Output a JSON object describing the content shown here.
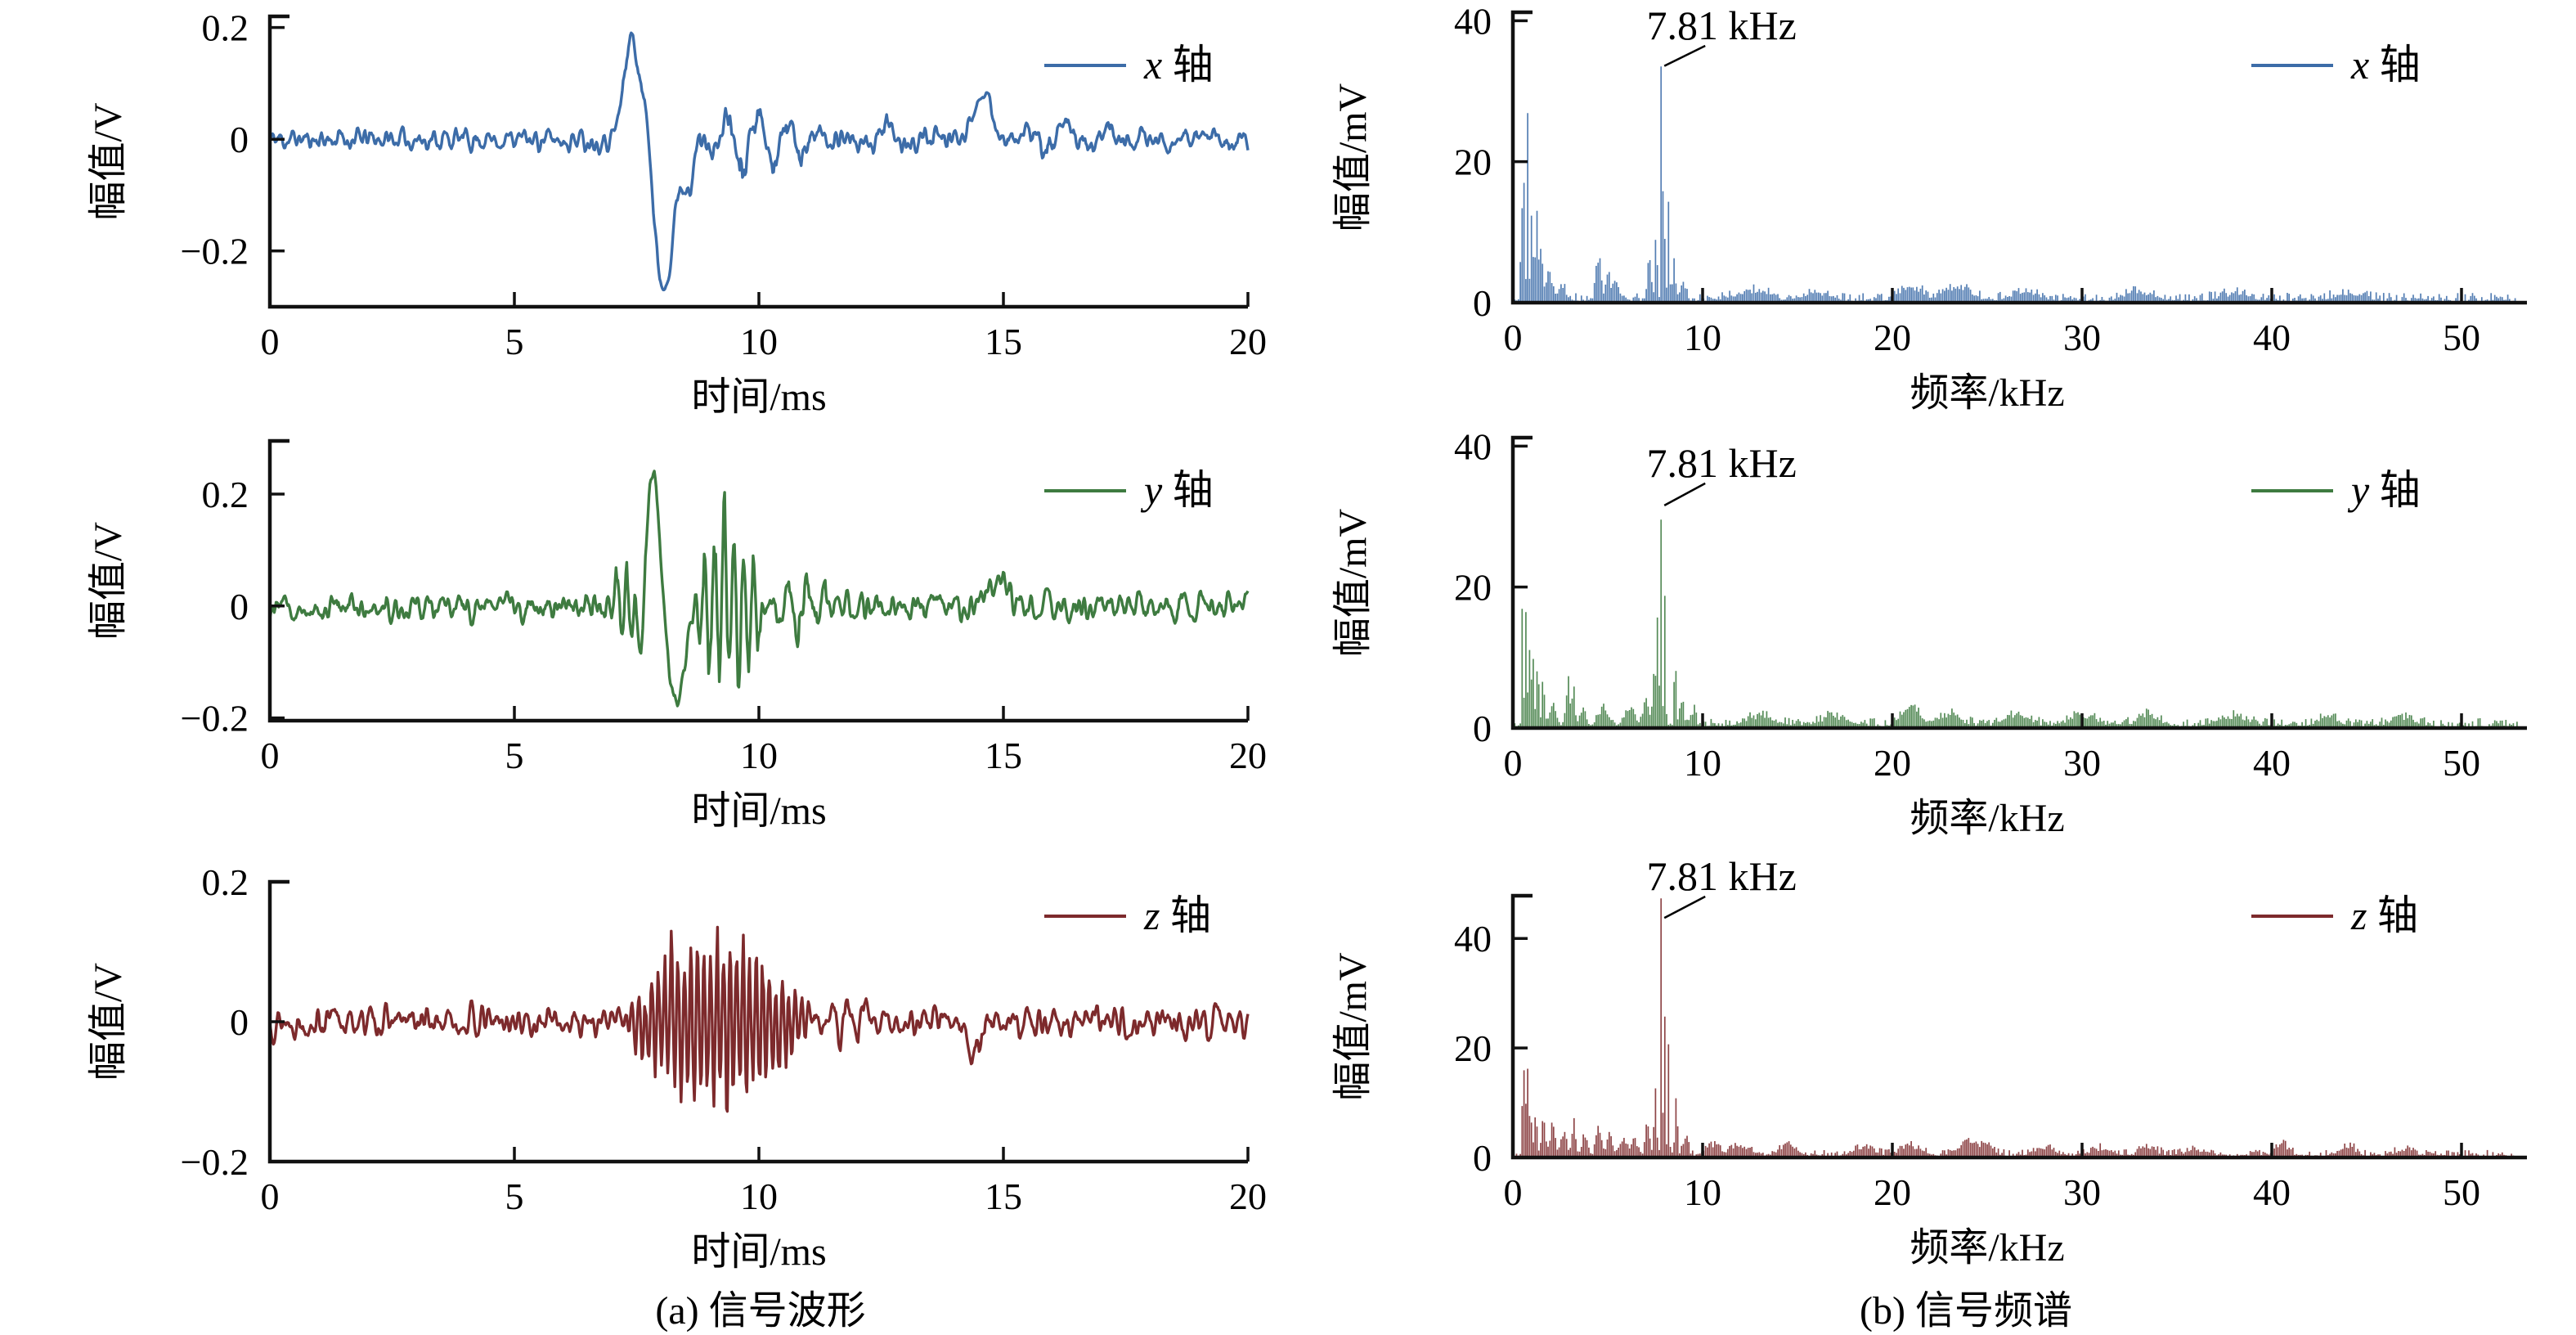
{
  "figure": {
    "captions": {
      "a": "(a) 信号波形",
      "b": "(b) 信号频谱"
    },
    "colors": {
      "x_axis_series": "#3c6ca8",
      "y_axis_series": "#3e7b40",
      "z_axis_series": "#7d2a2c",
      "axis": "#111111",
      "background": "#ffffff"
    }
  },
  "chart_data": [
    {
      "id": "waveform-x",
      "side": "left",
      "row": 0,
      "type": "line",
      "xlabel": "时间/ms",
      "ylabel": "幅值/V",
      "legend": {
        "series": "x",
        "suffix": " 轴"
      },
      "color": "#3c6ca8",
      "xlim": [
        0,
        20
      ],
      "xticks": [
        0,
        5,
        10,
        15,
        20
      ],
      "xtick_labels": [
        "0",
        "5",
        "10",
        "15",
        "20"
      ],
      "ylim": [
        -0.3,
        0.22
      ],
      "yticks": [
        0.2,
        0,
        -0.2
      ],
      "ytick_labels": [
        "0.2",
        "0",
        "−0.2"
      ],
      "grid": false,
      "signal": {
        "n": 1100,
        "seed": 11,
        "noise_amp": 0.016,
        "description": "background noise ±0.03 V; impact burst: +0.19 V peak at 7.4 ms, −0.26 V trough at 8.1 ms, ringing to 11.4 ms; small bump +0.08 V at 14.5 ms",
        "events": [
          {
            "type": "gauss",
            "t": 7.4,
            "w": 0.22,
            "amp": 0.185
          },
          {
            "type": "gauss",
            "t": 7.72,
            "w": 0.1,
            "amp": 0.09
          },
          {
            "type": "gauss",
            "t": 8.05,
            "w": 0.28,
            "amp": -0.26
          },
          {
            "type": "gauss",
            "t": 8.55,
            "w": 0.18,
            "amp": -0.08
          },
          {
            "type": "osc",
            "t0": 8.6,
            "t1": 11.4,
            "f": 1.6,
            "amp": 0.055
          },
          {
            "type": "osc",
            "t0": 11.5,
            "t1": 13.6,
            "f": 1.1,
            "amp": 0.022
          },
          {
            "type": "gauss",
            "t": 14.55,
            "w": 0.28,
            "amp": 0.08
          },
          {
            "type": "osc",
            "t0": 15.3,
            "t1": 17.6,
            "f": 1.2,
            "amp": 0.028
          }
        ]
      }
    },
    {
      "id": "spectrum-x",
      "side": "right",
      "row": 0,
      "type": "bar",
      "xlabel": "频率/kHz",
      "ylabel": "幅值/mV",
      "legend": {
        "series": "x",
        "suffix": " 轴"
      },
      "annotation": {
        "text": "7.81 kHz",
        "f": 7.81,
        "amp": 33
      },
      "color": "#3c6ca8",
      "xlim": [
        0,
        50
      ],
      "xticks": [
        0,
        10,
        20,
        30,
        40,
        50
      ],
      "xtick_labels": [
        "0",
        "10",
        "20",
        "30",
        "40",
        "50"
      ],
      "ylim": [
        0,
        41.2
      ],
      "yticks": [
        0,
        20,
        40
      ],
      "ytick_labels": [
        "0",
        "20",
        "40"
      ],
      "grid": false,
      "spectrum": {
        "df": 0.09765,
        "fmax": 53,
        "seed": 21,
        "floor": 0.9,
        "peaks": [
          [
            0.45,
            20,
            0.05
          ],
          [
            0.6,
            19,
            0.05
          ],
          [
            0.78,
            22,
            0.06
          ],
          [
            1.0,
            15,
            0.08
          ],
          [
            1.25,
            12,
            0.09
          ],
          [
            1.5,
            7,
            0.12
          ],
          [
            1.9,
            3.5,
            0.2
          ],
          [
            2.6,
            2,
            0.3
          ],
          [
            4.5,
            6,
            0.18
          ],
          [
            5.0,
            4,
            0.15
          ],
          [
            5.4,
            2.5,
            0.2
          ],
          [
            7.2,
            5,
            0.15
          ],
          [
            7.55,
            9,
            0.08
          ],
          [
            7.81,
            33,
            0.045
          ],
          [
            7.95,
            26,
            0.05
          ],
          [
            8.2,
            12,
            0.07
          ],
          [
            8.5,
            5,
            0.1
          ],
          [
            9.0,
            2,
            0.2
          ],
          [
            12.5,
            1.2,
            1.2
          ],
          [
            16,
            1,
            1
          ],
          [
            21,
            1.8,
            0.8
          ],
          [
            23.5,
            1.8,
            0.9
          ],
          [
            27,
            1,
            1
          ],
          [
            33,
            1,
            1
          ],
          [
            38,
            0.8,
            1
          ],
          [
            44,
            0.8,
            1
          ]
        ]
      }
    },
    {
      "id": "waveform-y",
      "side": "left",
      "row": 1,
      "type": "line",
      "xlabel": "时间/ms",
      "ylabel": "幅值/V",
      "legend": {
        "series": "y",
        "suffix": " 轴"
      },
      "color": "#3e7b40",
      "xlim": [
        0,
        20
      ],
      "xticks": [
        0,
        5,
        10,
        15,
        20
      ],
      "xtick_labels": [
        "0",
        "5",
        "10",
        "15",
        "20"
      ],
      "ylim": [
        -0.205,
        0.295
      ],
      "yticks": [
        0.2,
        0,
        -0.2
      ],
      "ytick_labels": [
        "0.2",
        "0",
        "−0.2"
      ],
      "grid": false,
      "signal": {
        "n": 1100,
        "seed": 12,
        "noise_amp": 0.02,
        "description": "background noise ±0.04 V; burst: +0.26 V peak at 7.9 ms, −0.17 V trough at 8.3 ms, 5 kHz oscillation cluster ±0.2 V at 8.7–10.1 ms",
        "events": [
          {
            "type": "osc",
            "t0": 6.85,
            "t1": 7.7,
            "f": 5.0,
            "amp": 0.07
          },
          {
            "type": "gauss",
            "t": 7.55,
            "w": 0.1,
            "amp": -0.09
          },
          {
            "type": "gauss",
            "t": 7.85,
            "w": 0.17,
            "amp": 0.26
          },
          {
            "type": "gauss",
            "t": 8.3,
            "w": 0.26,
            "amp": -0.17
          },
          {
            "type": "osc",
            "t0": 8.65,
            "t1": 10.15,
            "f": 5.0,
            "amp": 0.16
          },
          {
            "type": "osc",
            "t0": 10.15,
            "t1": 11.6,
            "f": 2.6,
            "amp": 0.055
          },
          {
            "type": "gauss",
            "t": 14.9,
            "w": 0.25,
            "amp": 0.05
          }
        ]
      }
    },
    {
      "id": "spectrum-y",
      "side": "right",
      "row": 1,
      "type": "bar",
      "xlabel": "频率/kHz",
      "ylabel": "幅值/mV",
      "legend": {
        "series": "y",
        "suffix": " 轴"
      },
      "annotation": {
        "text": "7.81 kHz",
        "f": 7.81,
        "amp": 31
      },
      "color": "#3e7b40",
      "xlim": [
        0,
        50
      ],
      "xticks": [
        0,
        10,
        20,
        30,
        40,
        50
      ],
      "xtick_labels": [
        "0",
        "10",
        "20",
        "30",
        "40",
        "50"
      ],
      "ylim": [
        0,
        41.2
      ],
      "yticks": [
        0,
        20,
        40
      ],
      "ytick_labels": [
        "0",
        "20",
        "40"
      ],
      "grid": false,
      "spectrum": {
        "df": 0.09765,
        "fmax": 53,
        "seed": 22,
        "floor": 0.9,
        "peaks": [
          [
            0.5,
            21,
            0.05
          ],
          [
            0.65,
            27.5,
            0.045
          ],
          [
            0.85,
            12,
            0.07
          ],
          [
            1.05,
            11.5,
            0.08
          ],
          [
            1.3,
            11,
            0.08
          ],
          [
            1.6,
            7.5,
            0.1
          ],
          [
            2.1,
            3,
            0.25
          ],
          [
            2.9,
            6.5,
            0.12
          ],
          [
            3.2,
            5,
            0.12
          ],
          [
            3.7,
            2.5,
            0.2
          ],
          [
            4.8,
            2,
            0.4
          ],
          [
            6.2,
            2.2,
            0.3
          ],
          [
            7.0,
            3,
            0.2
          ],
          [
            7.45,
            8,
            0.12
          ],
          [
            7.65,
            14,
            0.07
          ],
          [
            7.81,
            31,
            0.045
          ],
          [
            8.0,
            16,
            0.07
          ],
          [
            8.55,
            18,
            0.05
          ],
          [
            8.9,
            4,
            0.15
          ],
          [
            9.5,
            2,
            0.2
          ],
          [
            13,
            1.3,
            1
          ],
          [
            17,
            1.2,
            1
          ],
          [
            21,
            2.3,
            0.7
          ],
          [
            23,
            1.5,
            0.8
          ],
          [
            26.5,
            1.3,
            0.9
          ],
          [
            30,
            1.2,
            1
          ],
          [
            33.5,
            1.4,
            0.8
          ],
          [
            38,
            1,
            1
          ],
          [
            43,
            1.3,
            0.7
          ],
          [
            47,
            1,
            0.8
          ]
        ]
      }
    },
    {
      "id": "waveform-z",
      "side": "left",
      "row": 2,
      "type": "line",
      "xlabel": "时间/ms",
      "ylabel": "幅值/V",
      "legend": {
        "series": "z",
        "suffix": " 轴"
      },
      "color": "#7d2a2c",
      "xlim": [
        0,
        20
      ],
      "xticks": [
        0,
        5,
        10,
        15,
        20
      ],
      "xtick_labels": [
        "0",
        "5",
        "10",
        "15",
        "20"
      ],
      "ylim": [
        -0.2,
        0.2
      ],
      "yticks": [
        0.2,
        0,
        -0.2
      ],
      "ytick_labels": [
        "0.2",
        "0",
        "−0.2"
      ],
      "grid": false,
      "signal": {
        "n": 1100,
        "seed": 13,
        "noise_amp": 0.016,
        "description": "background noise ±0.03 V; high-frequency burst 7.3–11.1 ms reaching ±0.13 V around 8.8 ms; small dip −0.05 V at 14.4 ms",
        "events": [
          {
            "type": "osc",
            "t0": 7.25,
            "t1": 11.1,
            "f": 7.5,
            "amp": 0.12
          },
          {
            "type": "osc",
            "t0": 11.1,
            "t1": 12.4,
            "f": 3.0,
            "amp": 0.028
          },
          {
            "type": "gauss",
            "t": 14.4,
            "w": 0.16,
            "amp": -0.05
          }
        ]
      }
    },
    {
      "id": "spectrum-z",
      "side": "right",
      "row": 2,
      "type": "bar",
      "xlabel": "频率/kHz",
      "ylabel": "幅值/mV",
      "legend": {
        "series": "z",
        "suffix": " 轴"
      },
      "annotation": {
        "text": "7.81 kHz",
        "f": 7.81,
        "amp": 43
      },
      "color": "#7d2a2c",
      "xlim": [
        0,
        50
      ],
      "xticks": [
        0,
        10,
        20,
        30,
        40,
        50
      ],
      "xtick_labels": [
        "0",
        "10",
        "20",
        "30",
        "40",
        "50"
      ],
      "ylim": [
        0,
        47.8
      ],
      "yticks": [
        0,
        20,
        40
      ],
      "ytick_labels": [
        "0",
        "20",
        "40"
      ],
      "grid": false,
      "spectrum": {
        "df": 0.09765,
        "fmax": 53,
        "seed": 23,
        "floor": 0.9,
        "peaks": [
          [
            0.5,
            11,
            0.05
          ],
          [
            0.62,
            29,
            0.045
          ],
          [
            0.75,
            22,
            0.05
          ],
          [
            0.92,
            13,
            0.06
          ],
          [
            1.2,
            7.5,
            0.1
          ],
          [
            1.6,
            5,
            0.15
          ],
          [
            2.1,
            4.5,
            0.2
          ],
          [
            2.7,
            4,
            0.2
          ],
          [
            3.2,
            5.5,
            0.15
          ],
          [
            3.8,
            3.5,
            0.2
          ],
          [
            4.5,
            4.5,
            0.18
          ],
          [
            5.1,
            3.5,
            0.2
          ],
          [
            5.8,
            3,
            0.25
          ],
          [
            6.4,
            3,
            0.25
          ],
          [
            7.1,
            6,
            0.15
          ],
          [
            7.5,
            13,
            0.09
          ],
          [
            7.81,
            43,
            0.045
          ],
          [
            7.98,
            29,
            0.055
          ],
          [
            8.2,
            21,
            0.06
          ],
          [
            8.6,
            9,
            0.1
          ],
          [
            9.1,
            3.5,
            0.2
          ],
          [
            10.5,
            1.8,
            0.5
          ],
          [
            12,
            1.5,
            0.8
          ],
          [
            14.5,
            2,
            0.6
          ],
          [
            18.5,
            1.5,
            0.7
          ],
          [
            21,
            1.5,
            0.8
          ],
          [
            24,
            2.6,
            0.6
          ],
          [
            25,
            2,
            0.5
          ],
          [
            28,
            1.3,
            0.8
          ],
          [
            31,
            1.2,
            0.8
          ],
          [
            33.5,
            1.5,
            0.6
          ],
          [
            36,
            1,
            0.8
          ],
          [
            40.5,
            1.8,
            0.5
          ],
          [
            44,
            1.4,
            0.6
          ],
          [
            47,
            1,
            0.7
          ]
        ]
      }
    }
  ]
}
